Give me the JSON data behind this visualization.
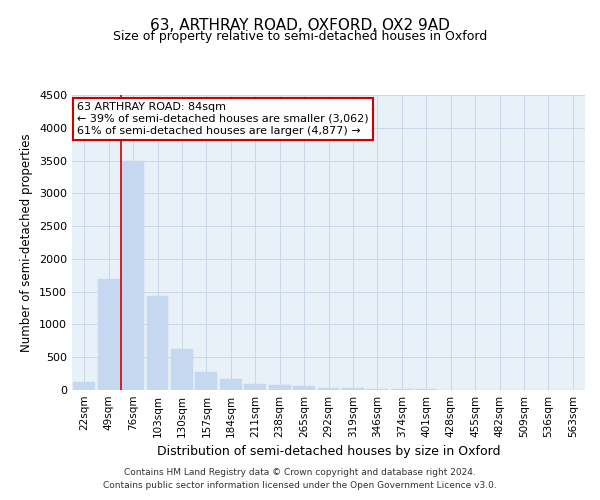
{
  "title": "63, ARTHRAY ROAD, OXFORD, OX2 9AD",
  "subtitle": "Size of property relative to semi-detached houses in Oxford",
  "xlabel": "Distribution of semi-detached houses by size in Oxford",
  "ylabel": "Number of semi-detached properties",
  "categories": [
    "22sqm",
    "49sqm",
    "76sqm",
    "103sqm",
    "130sqm",
    "157sqm",
    "184sqm",
    "211sqm",
    "238sqm",
    "265sqm",
    "292sqm",
    "319sqm",
    "346sqm",
    "374sqm",
    "401sqm",
    "428sqm",
    "455sqm",
    "482sqm",
    "509sqm",
    "536sqm",
    "563sqm"
  ],
  "values": [
    120,
    1700,
    3500,
    1440,
    620,
    280,
    165,
    95,
    75,
    55,
    38,
    25,
    18,
    12,
    8,
    0,
    0,
    0,
    0,
    0,
    0
  ],
  "bar_color": "#c5d8f0",
  "bar_edge_color": "#c5d8f0",
  "grid_color": "#c8d8e8",
  "background_color": "#e8f0f8",
  "red_line_index": 2,
  "annotation_line1": "63 ARTHRAY ROAD: 84sqm",
  "annotation_line2": "← 39% of semi-detached houses are smaller (3,062)",
  "annotation_line3": "61% of semi-detached houses are larger (4,877) →",
  "annotation_box_color": "#ffffff",
  "annotation_box_edge_color": "#cc0000",
  "ylim": [
    0,
    4500
  ],
  "yticks": [
    0,
    500,
    1000,
    1500,
    2000,
    2500,
    3000,
    3500,
    4000,
    4500
  ],
  "footer_line1": "Contains HM Land Registry data © Crown copyright and database right 2024.",
  "footer_line2": "Contains public sector information licensed under the Open Government Licence v3.0."
}
